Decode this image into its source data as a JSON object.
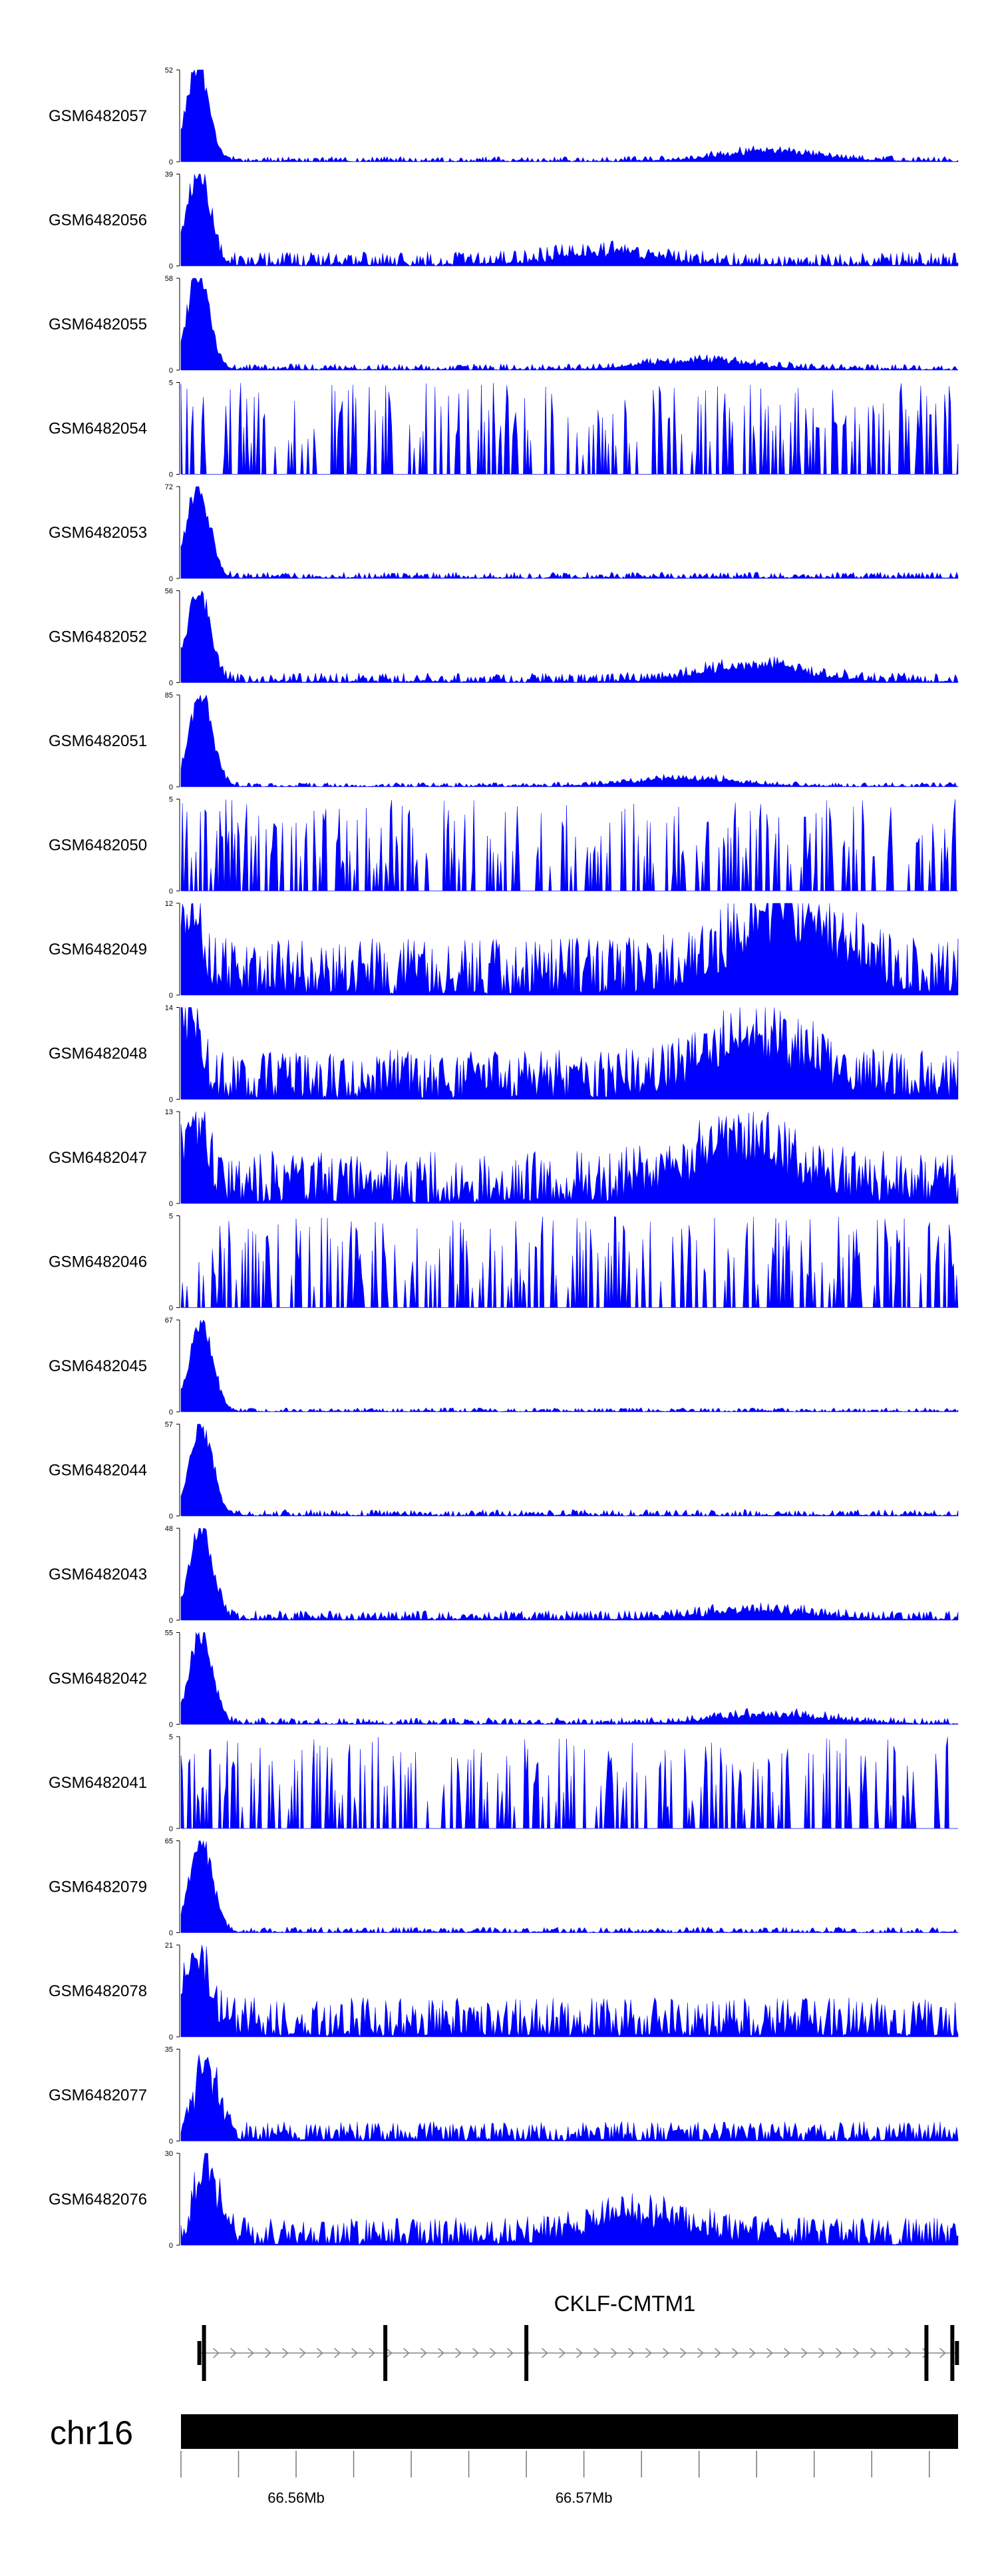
{
  "colors": {
    "signal": "#0000ff",
    "axis": "#000000",
    "ideogram": "#000000",
    "intron": "#888888"
  },
  "chart_data": {
    "type": "area",
    "x_range": [
      66.552,
      66.579
    ],
    "tracks": [
      {
        "sample": "GSM6482057",
        "ymin": 0,
        "ymax": 52,
        "peak_at": 66.5526,
        "peak": 52,
        "bg": 3,
        "bumps": [
          [
            66.5725,
            6
          ]
        ],
        "shape": "smooth",
        "seed": 1
      },
      {
        "sample": "GSM6482056",
        "ymin": 0,
        "ymax": 39,
        "peak_at": 66.5526,
        "peak": 39,
        "bg": 6,
        "bumps": [
          [
            66.5667,
            5
          ]
        ],
        "shape": "smooth",
        "seed": 2
      },
      {
        "sample": "GSM6482055",
        "ymin": 0,
        "ymax": 58,
        "peak_at": 66.5526,
        "peak": 58,
        "bg": 4,
        "bumps": [
          [
            66.57,
            6
          ]
        ],
        "shape": "smooth",
        "seed": 3
      },
      {
        "sample": "GSM6482054",
        "ymin": 0,
        "ymax": 5,
        "peak_at": 66.5521,
        "peak": 5,
        "bg": 5,
        "bumps": [],
        "shape": "sparse",
        "seed": 4
      },
      {
        "sample": "GSM6482053",
        "ymin": 0,
        "ymax": 72,
        "peak_at": 66.5526,
        "peak": 72,
        "bg": 5,
        "bumps": [],
        "shape": "smooth",
        "seed": 5
      },
      {
        "sample": "GSM6482052",
        "ymin": 0,
        "ymax": 56,
        "peak_at": 66.5526,
        "peak": 56,
        "bg": 6,
        "bumps": [
          [
            66.572,
            10
          ]
        ],
        "shape": "smooth",
        "seed": 6
      },
      {
        "sample": "GSM6482051",
        "ymin": 0,
        "ymax": 85,
        "peak_at": 66.5527,
        "peak": 85,
        "bg": 4,
        "bumps": [
          [
            66.5695,
            8
          ]
        ],
        "shape": "smooth",
        "seed": 7
      },
      {
        "sample": "GSM6482050",
        "ymin": 0,
        "ymax": 5,
        "peak_at": 66.5725,
        "peak": 5,
        "bg": 5,
        "bumps": [],
        "shape": "sparse",
        "seed": 8
      },
      {
        "sample": "GSM6482049",
        "ymin": 0,
        "ymax": 12,
        "peak_at": 66.5523,
        "peak": 12,
        "bg": 5,
        "bumps": [
          [
            66.573,
            10
          ]
        ],
        "shape": "dense",
        "seed": 9
      },
      {
        "sample": "GSM6482048",
        "ymin": 0,
        "ymax": 14,
        "peak_at": 66.5522,
        "peak": 14,
        "bg": 5,
        "bumps": [
          [
            66.572,
            8
          ]
        ],
        "shape": "dense",
        "seed": 10
      },
      {
        "sample": "GSM6482047",
        "ymin": 0,
        "ymax": 13,
        "peak_at": 66.5525,
        "peak": 13,
        "bg": 5,
        "bumps": [
          [
            66.5715,
            7
          ]
        ],
        "shape": "dense",
        "seed": 11
      },
      {
        "sample": "GSM6482046",
        "ymin": 0,
        "ymax": 5,
        "peak_at": 66.553,
        "peak": 5,
        "bg": 5,
        "bumps": [],
        "shape": "sparse",
        "seed": 12
      },
      {
        "sample": "GSM6482045",
        "ymin": 0,
        "ymax": 67,
        "peak_at": 66.5527,
        "peak": 67,
        "bg": 3,
        "bumps": [],
        "shape": "smooth",
        "seed": 13
      },
      {
        "sample": "GSM6482044",
        "ymin": 0,
        "ymax": 57,
        "peak_at": 66.5527,
        "peak": 57,
        "bg": 4,
        "bumps": [],
        "shape": "smooth",
        "seed": 14
      },
      {
        "sample": "GSM6482043",
        "ymin": 0,
        "ymax": 48,
        "peak_at": 66.5527,
        "peak": 48,
        "bg": 5,
        "bumps": [
          [
            66.572,
            5
          ]
        ],
        "shape": "smooth",
        "seed": 15
      },
      {
        "sample": "GSM6482042",
        "ymin": 0,
        "ymax": 55,
        "peak_at": 66.5527,
        "peak": 55,
        "bg": 4,
        "bumps": [
          [
            66.5725,
            6
          ]
        ],
        "shape": "smooth",
        "seed": 16
      },
      {
        "sample": "GSM6482041",
        "ymin": 0,
        "ymax": 5,
        "peak_at": 66.5725,
        "peak": 5,
        "bg": 5,
        "bumps": [],
        "shape": "sparse",
        "seed": 17
      },
      {
        "sample": "GSM6482079",
        "ymin": 0,
        "ymax": 65,
        "peak_at": 66.5527,
        "peak": 65,
        "bg": 4,
        "bumps": [],
        "shape": "smooth",
        "seed": 18
      },
      {
        "sample": "GSM6482078",
        "ymin": 0,
        "ymax": 21,
        "peak_at": 66.5526,
        "peak": 21,
        "bg": 6,
        "bumps": [],
        "shape": "dense",
        "seed": 19
      },
      {
        "sample": "GSM6482077",
        "ymin": 0,
        "ymax": 35,
        "peak_at": 66.5529,
        "peak": 35,
        "bg": 5,
        "bumps": [],
        "shape": "dense",
        "seed": 20
      },
      {
        "sample": "GSM6482076",
        "ymin": 0,
        "ymax": 30,
        "peak_at": 66.5529,
        "peak": 30,
        "bg": 6,
        "bumps": [
          [
            66.568,
            8
          ]
        ],
        "shape": "dense",
        "seed": 21
      }
    ],
    "gene": {
      "name": "CKLF-CMTM1",
      "start": 66.5528,
      "end": 66.5788,
      "strand": "+",
      "exons": [
        66.5528,
        66.5591,
        66.564,
        66.5779,
        66.5788
      ]
    },
    "chromosome": {
      "label": "chr16",
      "ticks": [
        66.552,
        66.554,
        66.556,
        66.558,
        66.56,
        66.562,
        66.564,
        66.566,
        66.568,
        66.57,
        66.572,
        66.574,
        66.576,
        66.578
      ],
      "tick_labels": [
        {
          "value": 66.556,
          "label": "66.56Mb"
        },
        {
          "value": 66.566,
          "label": "66.57Mb"
        }
      ]
    }
  }
}
